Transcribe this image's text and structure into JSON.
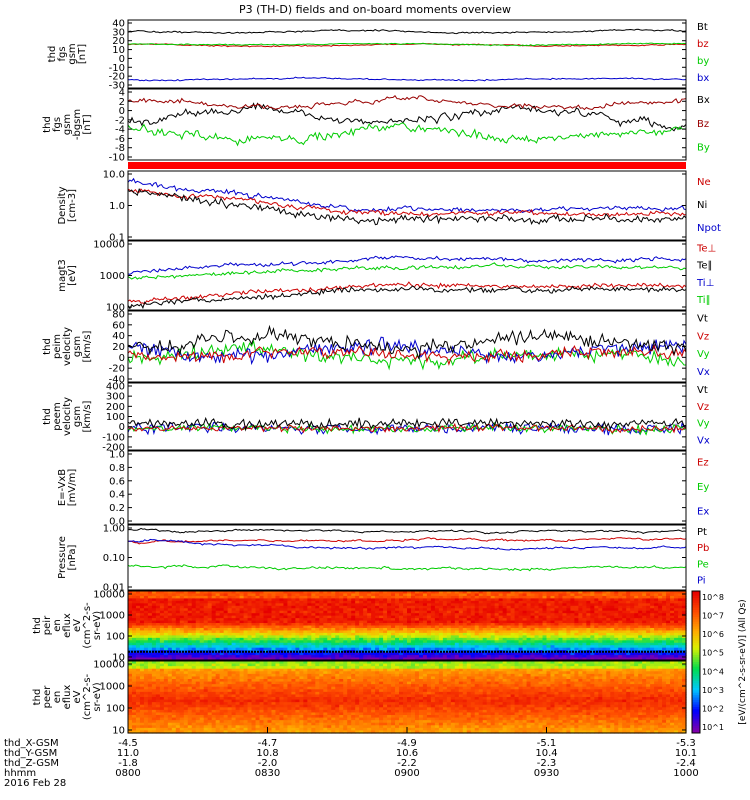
{
  "title": "P3 (TH-D) fields and on-board moments overview",
  "panels": [
    {
      "id": "fgs-gsm",
      "ylabel": [
        "thd",
        "fgs",
        "gsm",
        "[nT]"
      ],
      "type": "line",
      "yticks": [
        "40",
        "30",
        "20",
        "10",
        "0",
        "-10",
        "-20",
        "-30"
      ],
      "ylim": [
        -30,
        40
      ],
      "legend": [
        {
          "label": "Bt",
          "color": "#000000"
        },
        {
          "label": "bz",
          "color": "#cc0000"
        },
        {
          "label": "by",
          "color": "#00cc00"
        },
        {
          "label": "bx",
          "color": "#0000cc"
        }
      ],
      "series": [
        {
          "name": "Bt",
          "color": "#000000",
          "base": 28,
          "amp": 2,
          "noise": 0.6
        },
        {
          "name": "bz",
          "color": "#cc0000",
          "base": 14,
          "amp": 1.5,
          "noise": 0.4
        },
        {
          "name": "by",
          "color": "#00cc00",
          "base": 15,
          "amp": 1.2,
          "noise": 0.4
        },
        {
          "name": "bx",
          "color": "#0000cc",
          "base": -21,
          "amp": 1.5,
          "noise": 0.5
        }
      ]
    },
    {
      "id": "fgs-gsm-zoom",
      "ylabel": [
        "thd",
        "fgs",
        "gsm",
        "-bgsm",
        "[nT]"
      ],
      "type": "line",
      "yticks": [
        "4",
        "2",
        "0",
        "-2",
        "-4",
        "-6",
        "-8",
        "-10"
      ],
      "ylim": [
        -10,
        4.5
      ],
      "legend": [
        {
          "label": "Bx",
          "color": "#000000"
        },
        {
          "label": "Bz",
          "color": "#990000"
        },
        {
          "label": "By",
          "color": "#00cc00"
        }
      ],
      "series": [
        {
          "name": "Bx",
          "color": "#000000",
          "base": -1,
          "amp": 2.5,
          "noise": 0.5
        },
        {
          "name": "Bz",
          "color": "#990000",
          "base": 1.5,
          "amp": 1.2,
          "noise": 0.3
        },
        {
          "name": "By",
          "color": "#00cc00",
          "base": -4.5,
          "amp": 2.0,
          "noise": 0.6
        }
      ]
    },
    {
      "id": "mode-bar",
      "type": "bar",
      "ylabel": [],
      "color": "#ff0000"
    },
    {
      "id": "density",
      "ylabel": [
        "Density",
        "[cm-3]"
      ],
      "type": "logline",
      "yticks": [
        "10.0",
        "1.0",
        "0.1"
      ],
      "ylim": [
        0.1,
        10
      ],
      "legend": [
        {
          "label": "Ne",
          "color": "#cc0000"
        },
        {
          "label": "Ni",
          "color": "#000000"
        },
        {
          "label": "Npot",
          "color": "#0000cc"
        }
      ],
      "series": [
        {
          "name": "Npot",
          "color": "#0000cc",
          "start": 5.0,
          "end": 0.8,
          "noise": 0.05
        },
        {
          "name": "Ne",
          "color": "#cc0000",
          "start": 3.0,
          "end": 0.6,
          "noise": 0.05
        },
        {
          "name": "Ni",
          "color": "#000000",
          "start": 2.5,
          "end": 0.4,
          "noise": 0.08
        }
      ]
    },
    {
      "id": "temperature",
      "ylabel": [
        "magt3",
        "[eV]"
      ],
      "type": "logline",
      "yticks": [
        "10000",
        "1000",
        "100"
      ],
      "ylim": [
        100,
        10000
      ],
      "legend": [
        {
          "label": "Te⊥",
          "color": "#cc0000"
        },
        {
          "label": "Te∥",
          "color": "#000000"
        },
        {
          "label": "Ti⊥",
          "color": "#0000cc"
        },
        {
          "label": "Ti∥",
          "color": "#00cc00"
        }
      ],
      "series": [
        {
          "name": "Ti⊥",
          "color": "#0000cc",
          "start": 1200,
          "end": 3000,
          "noise": 0.04
        },
        {
          "name": "Ti∥",
          "color": "#00cc00",
          "start": 800,
          "end": 1800,
          "noise": 0.04
        },
        {
          "name": "Te⊥",
          "color": "#cc0000",
          "start": 180,
          "end": 500,
          "noise": 0.05
        },
        {
          "name": "Te∥",
          "color": "#000000",
          "start": 130,
          "end": 400,
          "noise": 0.06
        }
      ]
    },
    {
      "id": "peim-velocity",
      "ylabel": [
        "thd",
        "peim",
        "velocity",
        "gsm",
        "[km/s]"
      ],
      "type": "line",
      "yticks": [
        "80",
        "60",
        "40",
        "20",
        "0",
        "-20",
        "-40"
      ],
      "ylim": [
        -40,
        85
      ],
      "legend": [
        {
          "label": "Vt",
          "color": "#000000"
        },
        {
          "label": "Vz",
          "color": "#cc0000"
        },
        {
          "label": "Vy",
          "color": "#00cc00"
        },
        {
          "label": "Vx",
          "color": "#0000cc"
        }
      ],
      "series": [
        {
          "name": "Vy",
          "color": "#00cc00",
          "base": 5,
          "amp": 15,
          "noise": 10
        },
        {
          "name": "Vx",
          "color": "#0000cc",
          "base": 15,
          "amp": 15,
          "noise": 10
        },
        {
          "name": "Vz",
          "color": "#cc0000",
          "base": 10,
          "amp": 8,
          "noise": 8
        },
        {
          "name": "Vt",
          "color": "#000000",
          "base": 30,
          "amp": 15,
          "noise": 10
        }
      ]
    },
    {
      "id": "peem-velocity",
      "ylabel": [
        "thd",
        "peem",
        "velocity",
        "gsm",
        "[km/s]"
      ],
      "type": "line",
      "yticks": [
        "400",
        "300",
        "200",
        "100",
        "0",
        "-100",
        "-200"
      ],
      "ylim": [
        -200,
        420
      ],
      "legend": [
        {
          "label": "Vt",
          "color": "#000000"
        },
        {
          "label": "Vz",
          "color": "#cc0000"
        },
        {
          "label": "Vy",
          "color": "#00cc00"
        },
        {
          "label": "Vx",
          "color": "#0000cc"
        }
      ],
      "series": [
        {
          "name": "Vx",
          "color": "#0000cc",
          "base": 0,
          "amp": 10,
          "noise": 40
        },
        {
          "name": "Vy",
          "color": "#00cc00",
          "base": 0,
          "amp": 10,
          "noise": 30
        },
        {
          "name": "Vz",
          "color": "#cc0000",
          "base": 0,
          "amp": 10,
          "noise": 25
        },
        {
          "name": "Vt",
          "color": "#000000",
          "base": 45,
          "amp": 10,
          "noise": 35
        }
      ]
    },
    {
      "id": "efield",
      "ylabel": [
        "E=-VxB",
        "[mV/m]"
      ],
      "type": "line",
      "yticks": [
        "1.0",
        "0.8",
        "0.6",
        "0.4",
        "0.2",
        "0.0"
      ],
      "ylim": [
        0,
        1.0
      ],
      "legend": [
        {
          "label": "Ez",
          "color": "#cc0000"
        },
        {
          "label": "Ey",
          "color": "#00cc00"
        },
        {
          "label": "Ex",
          "color": "#0000cc"
        }
      ],
      "series": []
    },
    {
      "id": "pressure",
      "ylabel": [
        "Pressure",
        "[nPa]"
      ],
      "type": "logline",
      "yticks": [
        "1.00",
        "0.10",
        "0.01"
      ],
      "ylim": [
        0.01,
        1.2
      ],
      "legend": [
        {
          "label": "Pt",
          "color": "#000000"
        },
        {
          "label": "Pb",
          "color": "#cc0000"
        },
        {
          "label": "Pe",
          "color": "#00cc00"
        },
        {
          "label": "Pi",
          "color": "#0000cc"
        }
      ],
      "series": [
        {
          "name": "Pt",
          "color": "#000000",
          "start": 0.85,
          "end": 0.75,
          "noise": 0.01
        },
        {
          "name": "Pb",
          "color": "#cc0000",
          "start": 0.35,
          "end": 0.4,
          "noise": 0.015
        },
        {
          "name": "Pi",
          "color": "#0000cc",
          "start": 0.38,
          "end": 0.22,
          "noise": 0.015
        },
        {
          "name": "Pe",
          "color": "#00cc00",
          "start": 0.06,
          "end": 0.05,
          "noise": 0.02
        }
      ]
    },
    {
      "id": "peir-spec",
      "ylabel": [
        "thd",
        "peir",
        "en",
        "eflux",
        "eV",
        "(cm^2-s-",
        "sr-eV)"
      ],
      "type": "spectrogram",
      "yticks": [
        "10000",
        "1000",
        "100",
        "10"
      ],
      "colorbar_label": "[eV/(cm^2-s-sr-eV)] (All Qs)"
    },
    {
      "id": "peer-spec",
      "ylabel": [
        "thd",
        "peer",
        "en",
        "eflux",
        "eV",
        "(cm^2-s-",
        "sr-eV)"
      ],
      "type": "spectrogram",
      "yticks": [
        "10000",
        "1000",
        "100",
        "10"
      ]
    }
  ],
  "colorbar": {
    "ticks": [
      "10^8",
      "10^7",
      "10^6",
      "10^5",
      "10^4",
      "10^3",
      "10^2",
      "10^1"
    ],
    "label": "[eV/(cm^2-s-sr-eV)] (All Qs)"
  },
  "x_axis": {
    "rows": [
      {
        "label": "thd_X-GSM",
        "values": [
          "-4.5",
          "-4.7",
          "-4.9",
          "-5.1",
          "-5.3"
        ]
      },
      {
        "label": "thd_Y-GSM",
        "values": [
          "11.0",
          "10.8",
          "10.6",
          "10.4",
          "10.1"
        ]
      },
      {
        "label": "thd_Z-GSM",
        "values": [
          "-1.8",
          "-2.0",
          "-2.2",
          "-2.3",
          "-2.4"
        ]
      },
      {
        "label": "hhmm",
        "values": [
          "0800",
          "0830",
          "0900",
          "0930",
          "1000"
        ]
      }
    ],
    "date": "2016 Feb 28"
  },
  "chart_data": {
    "type": "line",
    "title": "P3 (TH-D) fields and on-board moments overview",
    "x": [
      "0800",
      "0830",
      "0900",
      "0930",
      "1000"
    ],
    "xlabel": "hhmm",
    "series": [
      {
        "name": "Bt",
        "values": [
          28,
          28,
          29,
          28,
          27
        ]
      },
      {
        "name": "bz",
        "values": [
          14,
          14,
          15,
          14,
          14
        ]
      },
      {
        "name": "by",
        "values": [
          15,
          15,
          16,
          15,
          14
        ]
      },
      {
        "name": "bx",
        "values": [
          -21,
          -20,
          -21,
          -21,
          -20
        ]
      },
      {
        "name": "Ni",
        "values": [
          2.5,
          0.6,
          0.4,
          0.5,
          0.4
        ]
      },
      {
        "name": "Pt",
        "values": [
          0.85,
          0.8,
          0.8,
          0.78,
          0.75
        ]
      }
    ]
  }
}
